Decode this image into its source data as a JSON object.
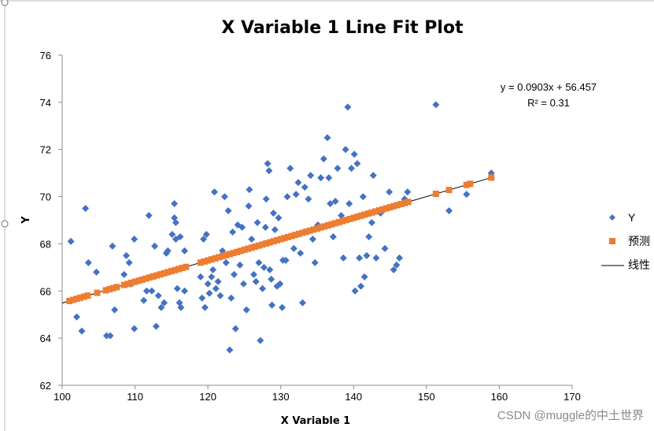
{
  "chart_data": {
    "type": "scatter",
    "title": "X Variable 1 Line Fit  Plot",
    "xlabel": "X Variable 1",
    "ylabel": "Y",
    "xlim": [
      100,
      170
    ],
    "ylim": [
      62,
      76
    ],
    "xticks": [
      100,
      110,
      120,
      130,
      140,
      150,
      160,
      170
    ],
    "yticks": [
      62,
      64,
      66,
      68,
      70,
      72,
      74,
      76
    ],
    "grid": false,
    "legend_position": "right",
    "colors": {
      "Y": "#4472C4",
      "predicted": "#ED7D31",
      "trend": "#000000"
    },
    "trendline": {
      "name": "线性",
      "slope": 0.0903,
      "intercept": 56.457,
      "x_range": [
        100,
        159
      ],
      "equation_label": "y = 0.0903x + 56.457",
      "r2_label": "R² = 0.31"
    },
    "series": [
      {
        "name": "Y",
        "marker": "diamond",
        "points": [
          [
            101.2,
            68.1
          ],
          [
            102,
            64.9
          ],
          [
            102.7,
            64.3
          ],
          [
            103.2,
            69.5
          ],
          [
            103.6,
            67.2
          ],
          [
            104.7,
            66.8
          ],
          [
            106.1,
            64.1
          ],
          [
            106.6,
            64.1
          ],
          [
            106.9,
            67.9
          ],
          [
            107.2,
            65.2
          ],
          [
            108.5,
            66.7
          ],
          [
            108.8,
            67.5
          ],
          [
            109.2,
            67.2
          ],
          [
            109.5,
            66.3
          ],
          [
            109.9,
            68.2
          ],
          [
            109.9,
            64.4
          ],
          [
            111.2,
            65.6
          ],
          [
            111.6,
            66
          ],
          [
            111.9,
            69.2
          ],
          [
            112.3,
            66
          ],
          [
            112.7,
            67.9
          ],
          [
            112.9,
            64.5
          ],
          [
            113.2,
            65.8
          ],
          [
            113.6,
            65.3
          ],
          [
            114,
            65.5
          ],
          [
            114.3,
            67.6
          ],
          [
            114.5,
            67.7
          ],
          [
            115.1,
            68.4
          ],
          [
            115.4,
            69.7
          ],
          [
            115.4,
            69.1
          ],
          [
            115.6,
            68.9
          ],
          [
            115.6,
            68.2
          ],
          [
            115.8,
            66.1
          ],
          [
            116.1,
            65.5
          ],
          [
            116.2,
            68.3
          ],
          [
            116.3,
            65.3
          ],
          [
            116.8,
            66
          ],
          [
            116.8,
            67.7
          ],
          [
            119,
            66.6
          ],
          [
            119.2,
            65.7
          ],
          [
            119.4,
            68.2
          ],
          [
            119.6,
            65.3
          ],
          [
            119.8,
            68.4
          ],
          [
            120,
            66.3
          ],
          [
            120.2,
            65.9
          ],
          [
            120.5,
            66.6
          ],
          [
            120.7,
            66.9
          ],
          [
            120.9,
            70.2
          ],
          [
            121.1,
            66.1
          ],
          [
            121.4,
            66.4
          ],
          [
            121.7,
            65.8
          ],
          [
            122,
            67.7
          ],
          [
            122.3,
            70
          ],
          [
            122.5,
            67.2
          ],
          [
            122.8,
            69.4
          ],
          [
            123,
            63.5
          ],
          [
            123.2,
            65.7
          ],
          [
            123.4,
            68.5
          ],
          [
            123.6,
            66.7
          ],
          [
            123.8,
            64.4
          ],
          [
            124.1,
            68.8
          ],
          [
            124.4,
            67.1
          ],
          [
            124.7,
            68.7
          ],
          [
            124.9,
            66.3
          ],
          [
            125.3,
            65.2
          ],
          [
            125.6,
            69.6
          ],
          [
            125.7,
            70.3
          ],
          [
            126,
            68.2
          ],
          [
            126.3,
            66.7
          ],
          [
            126.6,
            66.4
          ],
          [
            126.8,
            68.9
          ],
          [
            127,
            67.2
          ],
          [
            127.2,
            63.9
          ],
          [
            127.5,
            66.1
          ],
          [
            127.7,
            67
          ],
          [
            127.9,
            68.7
          ],
          [
            128,
            69.9
          ],
          [
            128.2,
            71.4
          ],
          [
            128.4,
            71.1
          ],
          [
            128.5,
            66.9
          ],
          [
            128.7,
            66.5
          ],
          [
            128.8,
            65.4
          ],
          [
            129,
            69.3
          ],
          [
            129.2,
            68.6
          ],
          [
            129.5,
            66.2
          ],
          [
            129.7,
            69.1
          ],
          [
            129.9,
            66.3
          ],
          [
            130.2,
            65.3
          ],
          [
            130.3,
            67.3
          ],
          [
            130.7,
            67.3
          ],
          [
            130.9,
            70
          ],
          [
            131.3,
            71.2
          ],
          [
            131.8,
            67.8
          ],
          [
            132.1,
            70.1
          ],
          [
            132.4,
            70.6
          ],
          [
            132.7,
            67.6
          ],
          [
            133,
            65.5
          ],
          [
            133.3,
            70.4
          ],
          [
            133.8,
            69.9
          ],
          [
            134.1,
            70.9
          ],
          [
            134.4,
            68.2
          ],
          [
            134.7,
            67.2
          ],
          [
            135.1,
            68.8
          ],
          [
            135.5,
            70.8
          ],
          [
            135.9,
            71.6
          ],
          [
            136.4,
            72.5
          ],
          [
            136.6,
            70.8
          ],
          [
            136.8,
            69.7
          ],
          [
            137.2,
            68.3
          ],
          [
            137.5,
            69.8
          ],
          [
            137.8,
            71.2
          ],
          [
            138.3,
            69.2
          ],
          [
            138.6,
            67.4
          ],
          [
            138.9,
            72
          ],
          [
            139.2,
            73.8
          ],
          [
            139.4,
            69.7
          ],
          [
            139.7,
            71.2
          ],
          [
            140.1,
            71.8
          ],
          [
            140.2,
            66
          ],
          [
            140.5,
            71.4
          ],
          [
            140.8,
            67.4
          ],
          [
            141,
            66.2
          ],
          [
            141.3,
            70
          ],
          [
            141.5,
            66.6
          ],
          [
            141.8,
            67.5
          ],
          [
            142.1,
            68.3
          ],
          [
            142.5,
            68.9
          ],
          [
            142.7,
            70.9
          ],
          [
            143.1,
            67.4
          ],
          [
            143.7,
            69.3
          ],
          [
            144.3,
            67.8
          ],
          [
            144.9,
            70.2
          ],
          [
            145.5,
            66.9
          ],
          [
            145.9,
            67.1
          ],
          [
            146.3,
            67.4
          ],
          [
            147,
            69.9
          ],
          [
            147.4,
            70.2
          ],
          [
            151.3,
            73.9
          ],
          [
            153.1,
            69.4
          ],
          [
            155.5,
            70.1
          ],
          [
            158.9,
            71
          ]
        ]
      },
      {
        "name": "预测",
        "marker": "square",
        "x": [
          101,
          101.5,
          102,
          102.5,
          103,
          103.5,
          104.8,
          106,
          106.5,
          107,
          107.5,
          108.5,
          109,
          109.5,
          110,
          110.5,
          111,
          111.5,
          112,
          112.5,
          113,
          113.5,
          114,
          114.5,
          115,
          115.5,
          116,
          116.5,
          117,
          119,
          119.5,
          120,
          120.5,
          121,
          121.5,
          122,
          122.5,
          123,
          123.5,
          124,
          124.5,
          125,
          125.5,
          126,
          126.5,
          127,
          127.5,
          128,
          128.5,
          129,
          129.5,
          130,
          130.5,
          131,
          131.5,
          132,
          132.5,
          133,
          133.5,
          134,
          134.5,
          135,
          135.5,
          136,
          136.5,
          137,
          137.5,
          138,
          138.5,
          139,
          139.5,
          140,
          140.5,
          141,
          141.5,
          142,
          142.5,
          143,
          143.5,
          144,
          144.5,
          145,
          145.5,
          146,
          146.5,
          147,
          147.5,
          151.3,
          153.1,
          155.5,
          156,
          158.9
        ]
      }
    ]
  },
  "legend": {
    "items": [
      {
        "label": "Y"
      },
      {
        "label": "预测"
      },
      {
        "label": "线性"
      }
    ]
  },
  "watermark": "CSDN @muggle的中土世界"
}
